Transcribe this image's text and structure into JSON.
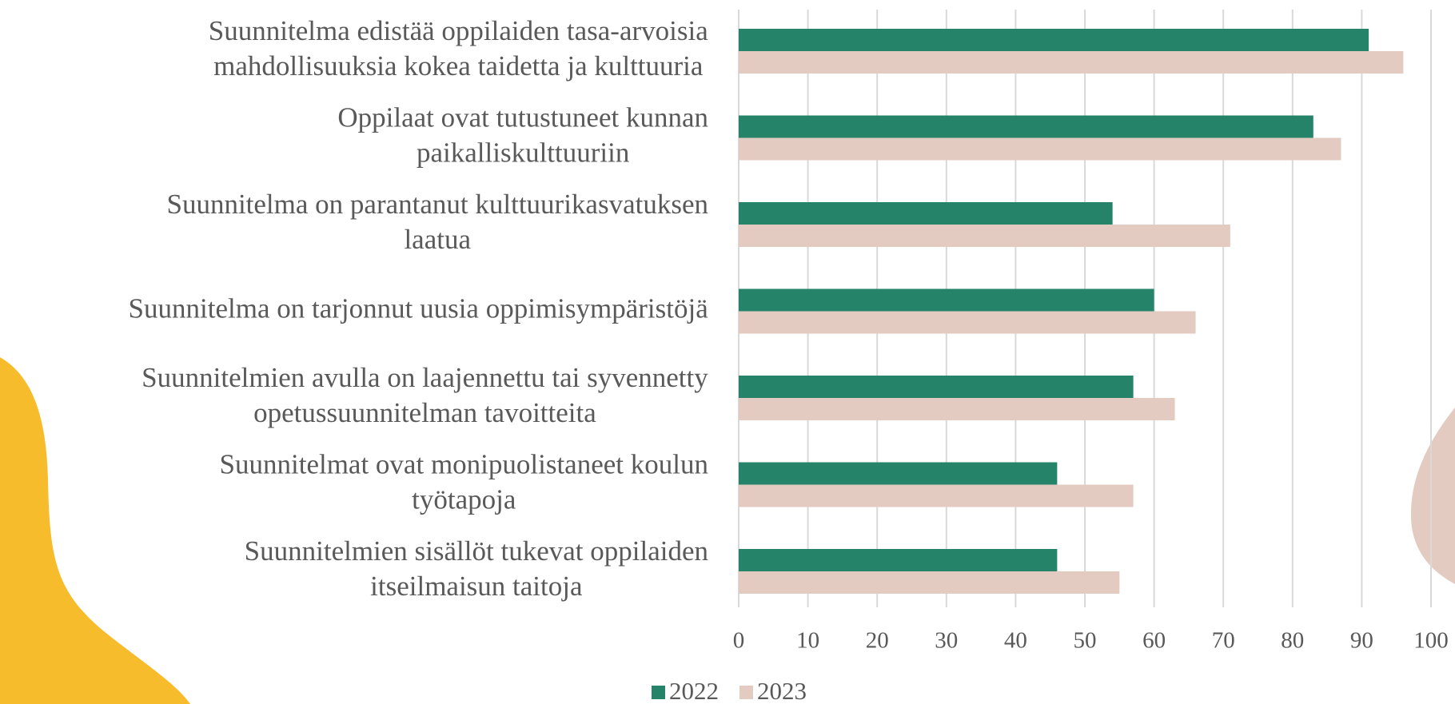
{
  "chart_data": {
    "type": "hbar",
    "categories": [
      [
        "Suunnitelma edistää oppilaiden tasa-arvoisia",
        "mahdollisuuksia kokea taidetta ja kulttuuria"
      ],
      [
        "Oppilaat ovat tutustuneet kunnan",
        "paikalliskulttuuriin"
      ],
      [
        "Suunnitelma on parantanut kulttuurikasvatuksen",
        "laatua"
      ],
      [
        "Suunnitelma on tarjonnut uusia oppimisympäristöjä"
      ],
      [
        "Suunnitelmien avulla on laajennettu tai syvennetty",
        "opetussuunnitelman tavoitteita"
      ],
      [
        "Suunnitelmat ovat monipuolistaneet koulun",
        "työtapoja"
      ],
      [
        "Suunnitelmien sisällöt tukevat oppilaiden",
        "itseilmaisun taitoja"
      ]
    ],
    "series": [
      {
        "name": "2022",
        "color": "#25836a",
        "values": [
          91,
          83,
          54,
          60,
          57,
          46,
          46
        ]
      },
      {
        "name": "2023",
        "color": "#e4cbc1",
        "values": [
          96,
          87,
          71,
          66,
          63,
          57,
          55
        ]
      }
    ],
    "xlim": [
      0,
      100
    ],
    "xticks": [
      0,
      10,
      20,
      30,
      40,
      50,
      60,
      70,
      80,
      90,
      100
    ],
    "grid": true
  }
}
